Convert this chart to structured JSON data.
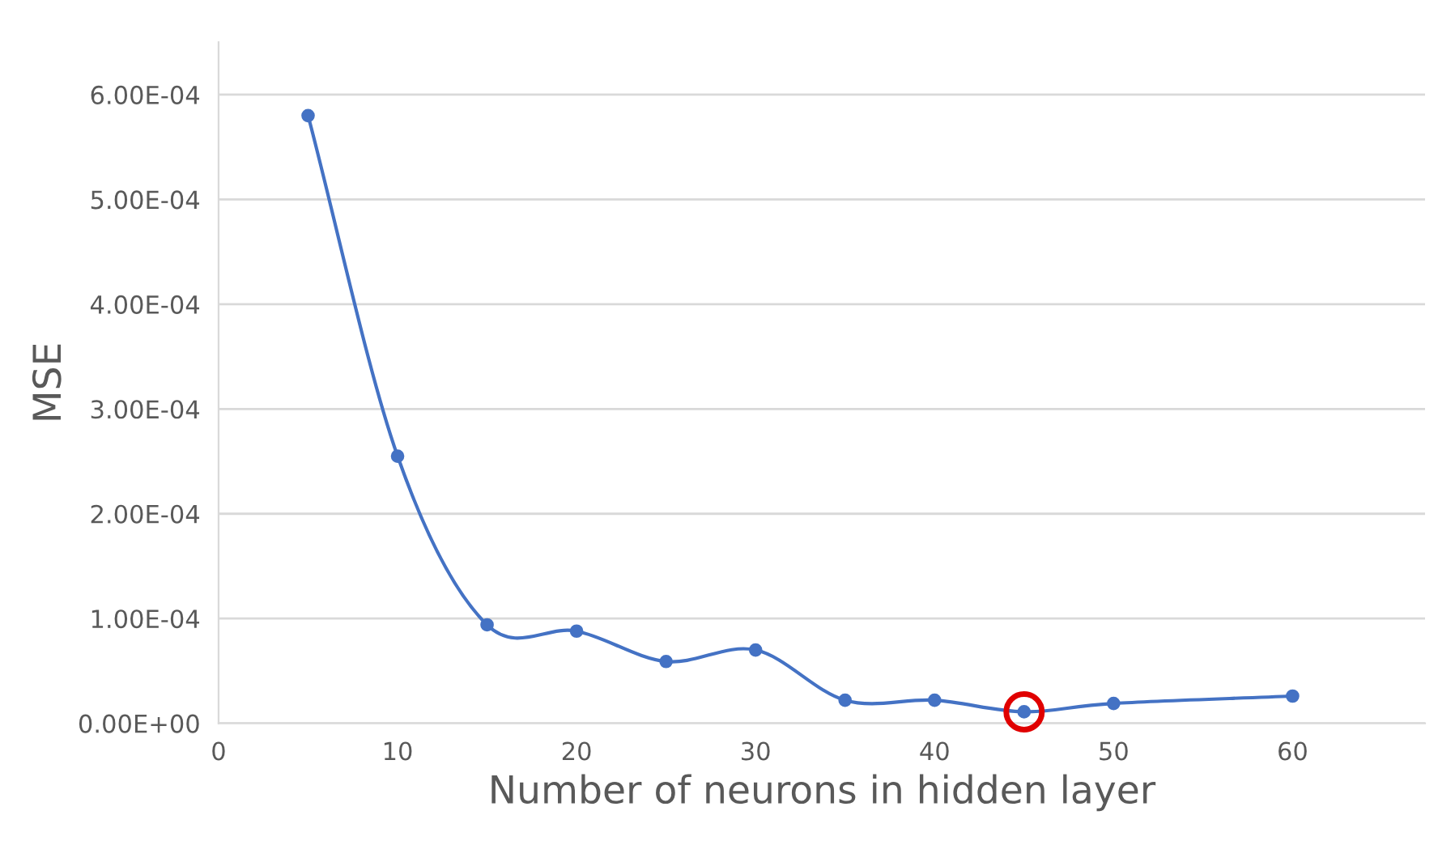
{
  "chart_data": {
    "type": "line",
    "xlabel": "Number of neurons in hidden layer",
    "ylabel": "MSE",
    "x": [
      5,
      10,
      15,
      20,
      25,
      30,
      35,
      40,
      45,
      50,
      60
    ],
    "series": [
      {
        "color": "#4472c4",
        "values": [
          0.00058,
          0.000255,
          9.4e-05,
          8.8e-05,
          5.9e-05,
          7e-05,
          2.2e-05,
          2.2e-05,
          1.1e-05,
          1.9e-05,
          2.6e-05
        ]
      }
    ],
    "xlim": [
      0,
      67.4
    ],
    "xticks": [
      0,
      10,
      20,
      30,
      40,
      50,
      60
    ],
    "ylim": [
      0,
      0.00065
    ],
    "yticks": [
      {
        "value": 0,
        "label": "0.00E+00"
      },
      {
        "value": 0.0001,
        "label": "1.00E-04"
      },
      {
        "value": 0.0002,
        "label": "2.00E-04"
      },
      {
        "value": 0.0003,
        "label": "3.00E-04"
      },
      {
        "value": 0.0004,
        "label": "4.00E-04"
      },
      {
        "value": 0.0005,
        "label": "5.00E-04"
      },
      {
        "value": 0.0006,
        "label": "6.00E-04"
      }
    ],
    "grid": "y",
    "marker": "circle",
    "line_style": "solid"
  }
}
